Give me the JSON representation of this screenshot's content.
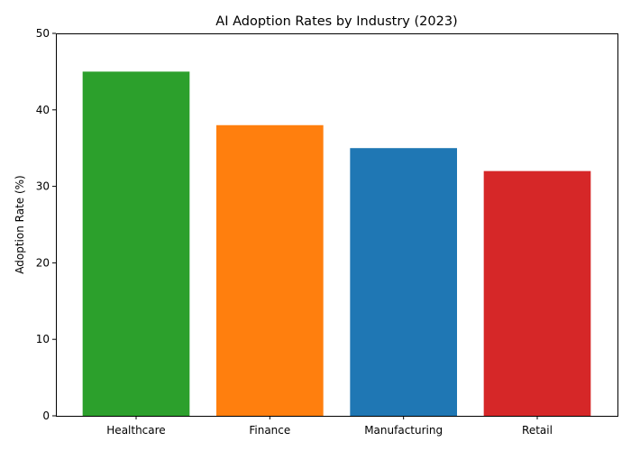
{
  "chart_data": {
    "type": "bar",
    "title": "AI Adoption Rates by Industry (2023)",
    "xlabel": "",
    "ylabel": "Adoption Rate (%)",
    "categories": [
      "Healthcare",
      "Finance",
      "Manufacturing",
      "Retail"
    ],
    "values": [
      45,
      38,
      35,
      32
    ],
    "colors": [
      "#2ca02c",
      "#ff7f0e",
      "#1f77b4",
      "#d62728"
    ],
    "ylim": [
      0,
      50
    ],
    "yticks": [
      0,
      10,
      20,
      30,
      40,
      50
    ],
    "grid": false,
    "legend": "none"
  }
}
